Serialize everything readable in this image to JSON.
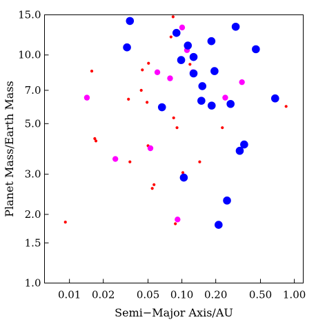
{
  "chart_data": {
    "type": "scatter",
    "title": "",
    "xlabel": "Semi−Major Axis/AU",
    "ylabel": "Planet Mass/Earth Mass",
    "x_scale": "log",
    "y_scale": "log",
    "xlim": [
      0.006,
      1.2
    ],
    "ylim": [
      1.0,
      15.0
    ],
    "grid": false,
    "legend": "none",
    "x_ticks": [
      {
        "value": 0.01,
        "label": "0.01"
      },
      {
        "value": 0.02,
        "label": "0.02"
      },
      {
        "value": 0.05,
        "label": "0.05"
      },
      {
        "value": 0.1,
        "label": "0.10"
      },
      {
        "value": 0.2,
        "label": "0.20"
      },
      {
        "value": 0.5,
        "label": "0.50"
      },
      {
        "value": 1.0,
        "label": "1.00"
      }
    ],
    "y_ticks": [
      {
        "value": 1.0,
        "label": "1.0"
      },
      {
        "value": 1.5,
        "label": "1.5"
      },
      {
        "value": 2.0,
        "label": "2.0"
      },
      {
        "value": 3.0,
        "label": "3.0"
      },
      {
        "value": 5.0,
        "label": "5.0"
      },
      {
        "value": 7.0,
        "label": "7.0"
      },
      {
        "value": 10.0,
        "label": "10.0"
      },
      {
        "value": 15.0,
        "label": "15.0"
      }
    ],
    "series": [
      {
        "color": "#ff0000",
        "marker": "small-dot",
        "points": [
          {
            "x": 0.0092,
            "y": 1.85
          },
          {
            "x": 0.0158,
            "y": 8.5
          },
          {
            "x": 0.0168,
            "y": 4.3
          },
          {
            "x": 0.0172,
            "y": 4.2
          },
          {
            "x": 0.0335,
            "y": 6.4
          },
          {
            "x": 0.0345,
            "y": 3.4
          },
          {
            "x": 0.0435,
            "y": 7.0
          },
          {
            "x": 0.0445,
            "y": 8.6
          },
          {
            "x": 0.049,
            "y": 6.2
          },
          {
            "x": 0.05,
            "y": 4.0
          },
          {
            "x": 0.0505,
            "y": 9.2
          },
          {
            "x": 0.0545,
            "y": 2.6
          },
          {
            "x": 0.0565,
            "y": 2.7
          },
          {
            "x": 0.0835,
            "y": 14.7
          },
          {
            "x": 0.08,
            "y": 12.0
          },
          {
            "x": 0.0845,
            "y": 5.3
          },
          {
            "x": 0.0875,
            "y": 1.82
          },
          {
            "x": 0.0905,
            "y": 4.8
          },
          {
            "x": 0.102,
            "y": 3.05
          },
          {
            "x": 0.118,
            "y": 9.1
          },
          {
            "x": 0.144,
            "y": 3.4
          },
          {
            "x": 0.229,
            "y": 4.8
          },
          {
            "x": 0.845,
            "y": 5.95
          }
        ]
      },
      {
        "color": "#ff00ff",
        "marker": "medium-dot",
        "points": [
          {
            "x": 0.0143,
            "y": 6.5
          },
          {
            "x": 0.0256,
            "y": 3.5
          },
          {
            "x": 0.0525,
            "y": 3.9
          },
          {
            "x": 0.0605,
            "y": 8.4
          },
          {
            "x": 0.0785,
            "y": 7.9
          },
          {
            "x": 0.0915,
            "y": 1.9
          },
          {
            "x": 0.1005,
            "y": 13.2
          },
          {
            "x": 0.111,
            "y": 10.5
          },
          {
            "x": 0.125,
            "y": 8.4
          },
          {
            "x": 0.243,
            "y": 6.5
          },
          {
            "x": 0.342,
            "y": 7.6
          }
        ]
      },
      {
        "color": "#0000ff",
        "marker": "large-dot",
        "points": [
          {
            "x": 0.0345,
            "y": 14.1
          },
          {
            "x": 0.0325,
            "y": 10.8
          },
          {
            "x": 0.0665,
            "y": 5.9
          },
          {
            "x": 0.0895,
            "y": 12.5
          },
          {
            "x": 0.0985,
            "y": 9.5
          },
          {
            "x": 0.104,
            "y": 2.9
          },
          {
            "x": 0.113,
            "y": 11.0
          },
          {
            "x": 0.127,
            "y": 9.8
          },
          {
            "x": 0.127,
            "y": 8.3
          },
          {
            "x": 0.152,
            "y": 7.3
          },
          {
            "x": 0.149,
            "y": 6.3
          },
          {
            "x": 0.183,
            "y": 11.5
          },
          {
            "x": 0.184,
            "y": 6.0
          },
          {
            "x": 0.195,
            "y": 8.5
          },
          {
            "x": 0.212,
            "y": 1.8
          },
          {
            "x": 0.252,
            "y": 2.3
          },
          {
            "x": 0.271,
            "y": 6.1
          },
          {
            "x": 0.301,
            "y": 13.3
          },
          {
            "x": 0.327,
            "y": 3.8
          },
          {
            "x": 0.358,
            "y": 4.05
          },
          {
            "x": 0.455,
            "y": 10.6
          },
          {
            "x": 0.675,
            "y": 6.45
          }
        ]
      }
    ]
  }
}
